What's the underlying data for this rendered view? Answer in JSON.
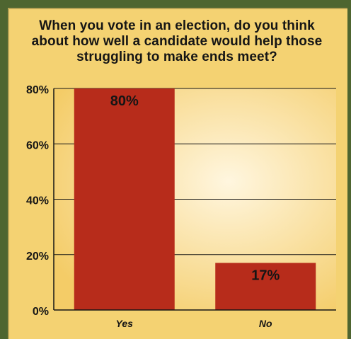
{
  "chart_data": {
    "type": "bar",
    "title": "When you vote in an election, do you think about how well a candidate would help those struggling to make ends meet?",
    "categories": [
      "Yes",
      "No"
    ],
    "values": [
      80,
      17
    ],
    "value_labels": [
      "80%",
      "17%"
    ],
    "y_ticks": [
      "0%",
      "20%",
      "40%",
      "60%",
      "80%"
    ],
    "ylim": [
      0,
      80
    ],
    "grid": true,
    "colors": {
      "frame": "#4e6530",
      "panel": "#f4d272",
      "plot_center": "#fff6df",
      "plot_edge": "#f4cc67",
      "bar": "#b72c1b",
      "text": "#151515"
    }
  }
}
